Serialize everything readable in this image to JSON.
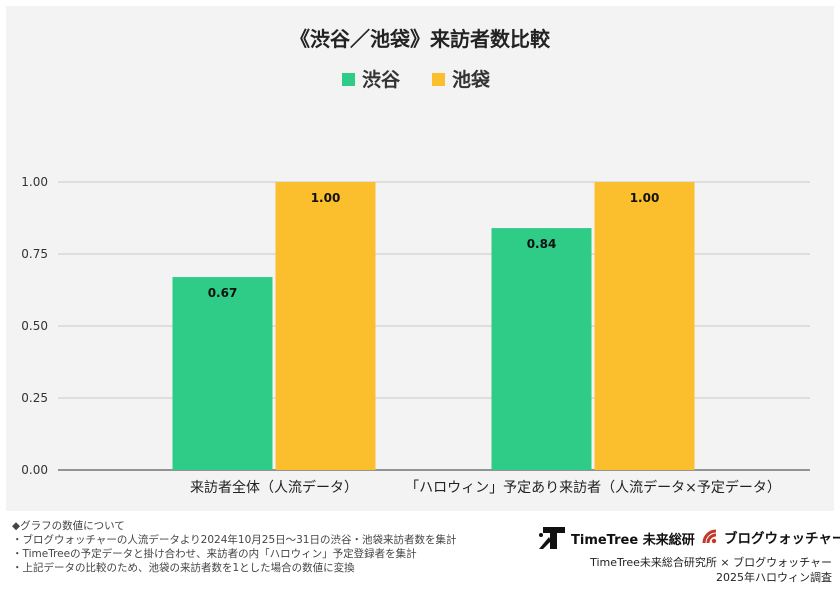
{
  "chart_data": {
    "type": "bar",
    "title": "《渋谷／池袋》来訪者数比較",
    "categories": [
      "来訪者全体（人流データ）",
      "「ハロウィン」予定あり来訪者（人流データ×予定データ）"
    ],
    "series": [
      {
        "name": "渋谷",
        "values": [
          0.67,
          0.84
        ],
        "color": "#2ecc87",
        "labels": [
          "0.67",
          "0.84"
        ]
      },
      {
        "name": "池袋",
        "values": [
          1.0,
          1.0
        ],
        "color": "#fbbf2e",
        "labels": [
          "1.00",
          "1.00"
        ]
      }
    ],
    "ylim": [
      0,
      1.0
    ],
    "yticks": [
      "0.00",
      "0.25",
      "0.50",
      "0.75",
      "1.00"
    ],
    "grid": true,
    "legend_position": "top-center",
    "xlabel": "",
    "ylabel": ""
  },
  "notes": [
    "◆グラフの数値について",
    "・ブログウォッチャーの人流データより2024年10月25日～31日の渋谷・池袋来訪者数を集計",
    "・TimeTreeの予定データと掛け合わせ、来訪者の内「ハロウィン」予定登録者を集計",
    "・上記データの比較のため、池袋の来訪者数を1とした場合の数値に変換"
  ],
  "logos": {
    "timetree": "TimeTree 未来総研",
    "blogwatcher": "ブログウォッチャー"
  },
  "credits": {
    "line1": "TimeTree未来総合研究所 × ブログウォッチャー",
    "line2": "2025年ハロウィン調査"
  }
}
